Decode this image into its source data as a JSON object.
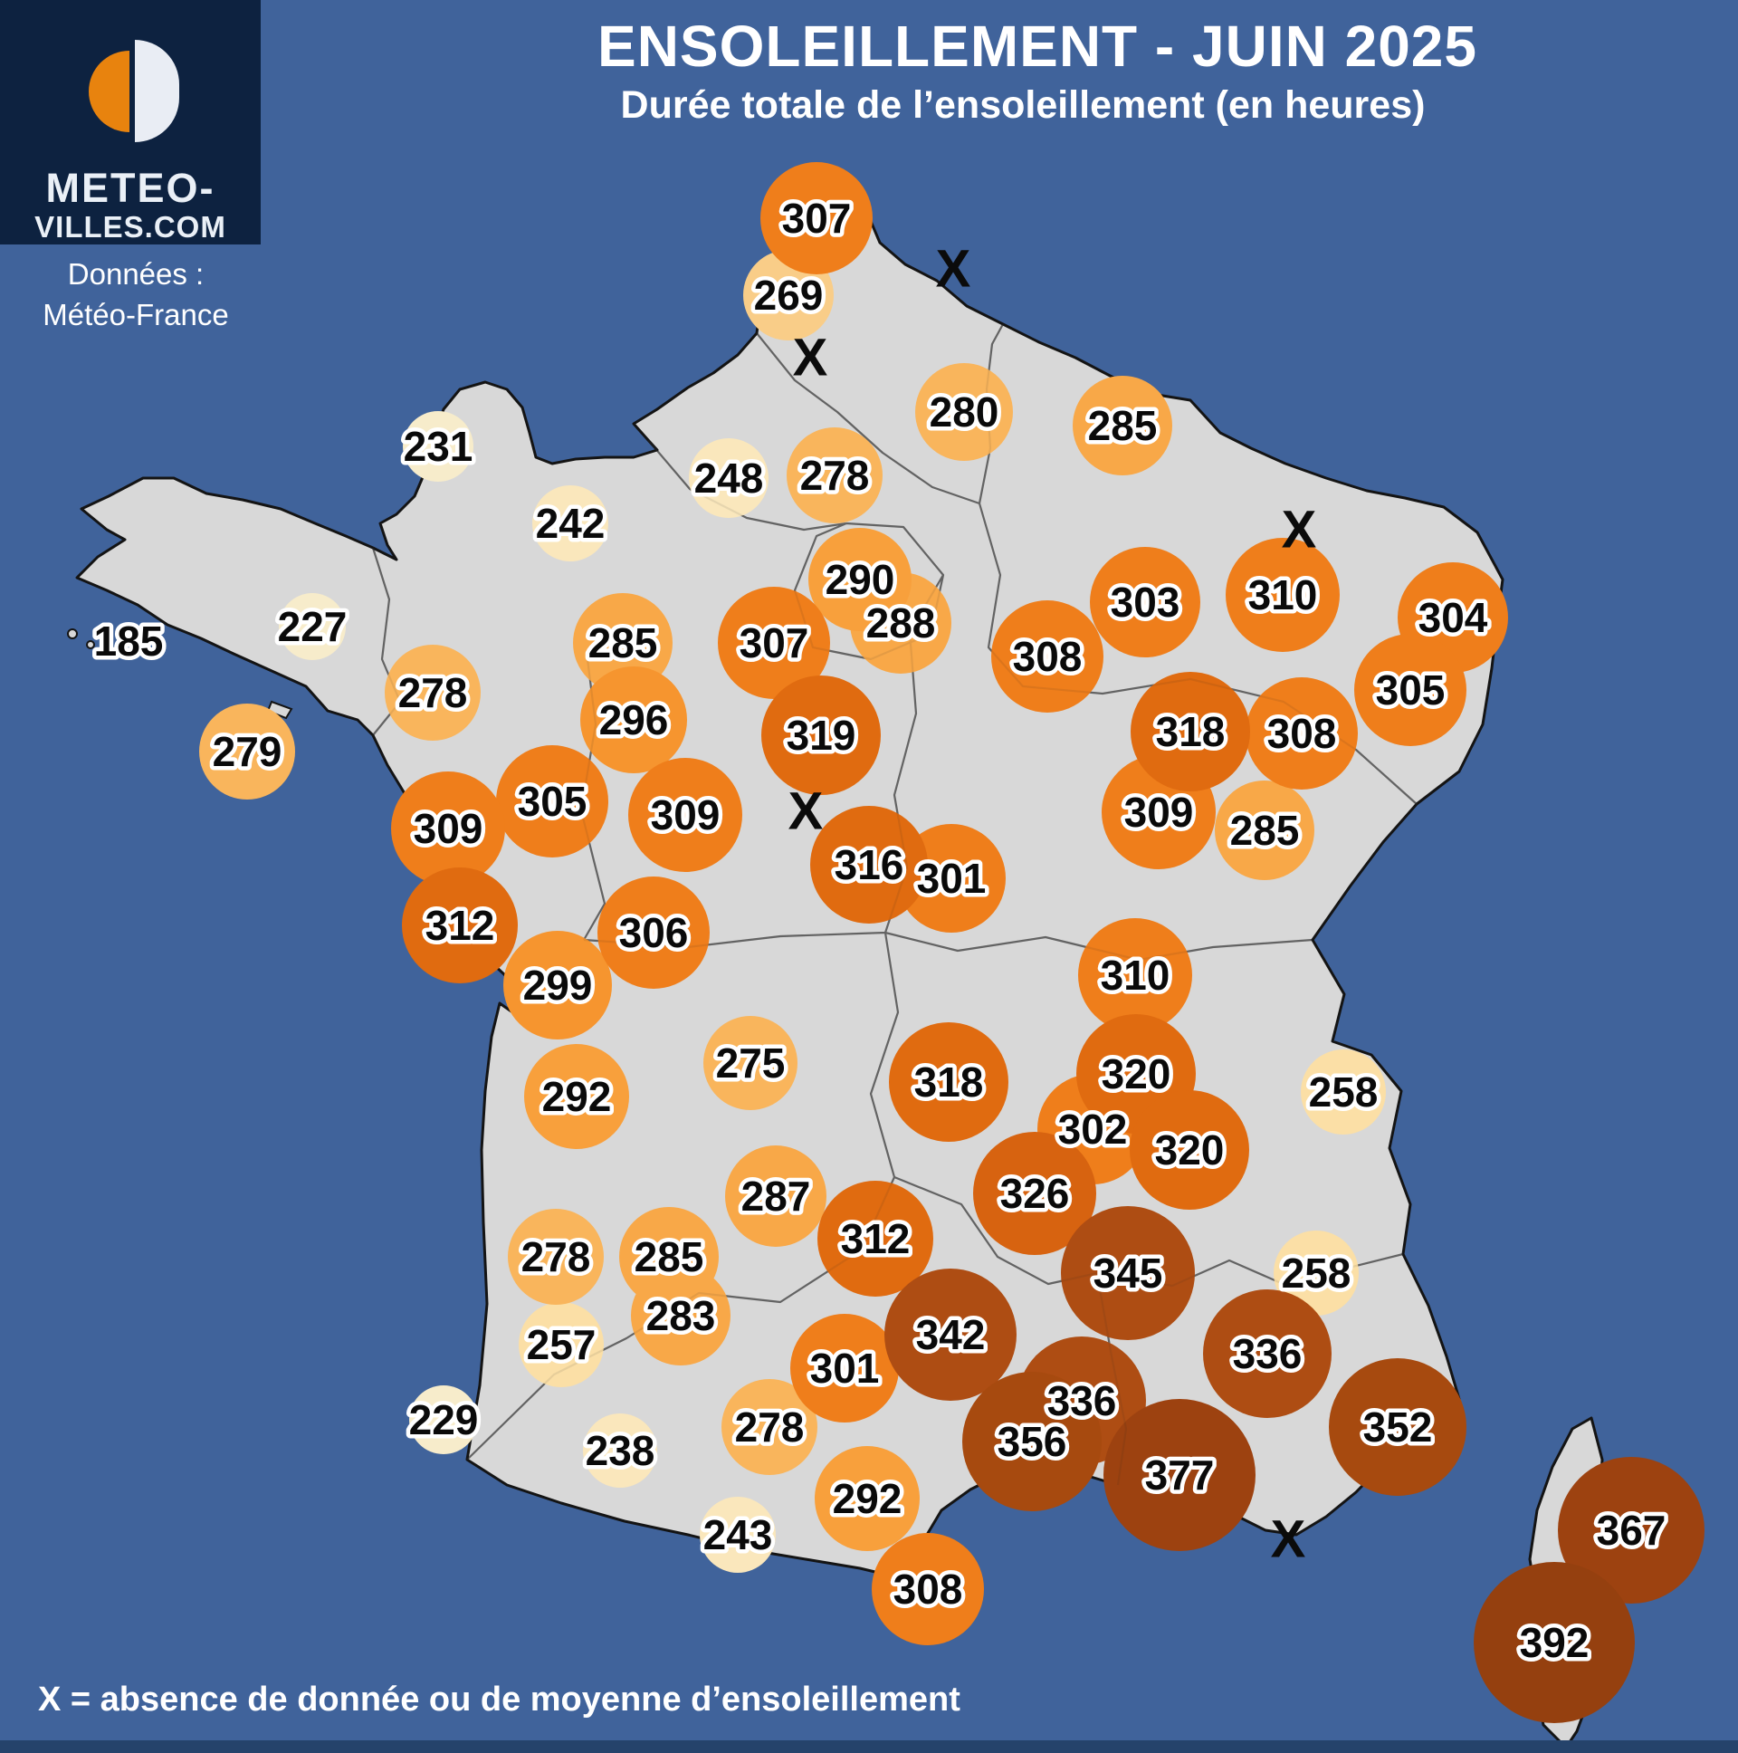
{
  "header": {
    "title": "ENSOLEILLEMENT - JUIN 2025",
    "subtitle": "Durée totale de l’ensoleillement (en heures)"
  },
  "logo": {
    "line1": "METEO-",
    "line2": "VILLES.COM",
    "navy": "#0D2240",
    "orange": "#E8830E"
  },
  "credit": {
    "line1": "Données :",
    "line2": "Météo-France"
  },
  "footer": {
    "legend": "X = absence de donnée ou de moyenne d’ensoleillement"
  },
  "map": {
    "sea_color": "#40639B",
    "land_color": "#D8D8D8",
    "coast_color": "#141414",
    "border_color": "#222222",
    "bottom_strip_color": "#25436B",
    "label_color": "#0A0A0A",
    "label_outline": "#FFFFFF"
  },
  "color_scale": [
    {
      "max": 200,
      "color": "#FDF8EA"
    },
    {
      "max": 235,
      "color": "#F7ECCB"
    },
    {
      "max": 250,
      "color": "#FAE7BC"
    },
    {
      "max": 262,
      "color": "#FBDFA6"
    },
    {
      "max": 272,
      "color": "#F9CD88"
    },
    {
      "max": 282,
      "color": "#F9B55C"
    },
    {
      "max": 289,
      "color": "#F8A848"
    },
    {
      "max": 294,
      "color": "#F8A03C"
    },
    {
      "max": 300,
      "color": "#F6952F"
    },
    {
      "max": 311,
      "color": "#EF7E1B"
    },
    {
      "max": 322,
      "color": "#E06B10"
    },
    {
      "max": 330,
      "color": "#D76310"
    },
    {
      "max": 348,
      "color": "#AE4D13"
    },
    {
      "max": 360,
      "color": "#A74A0F"
    },
    {
      "max": 385,
      "color": "#9D4210"
    },
    {
      "max": 999,
      "color": "#95400F"
    }
  ],
  "data_points_format": [
    "value_hours",
    "x_px",
    "y_px"
  ],
  "label_only_points": [
    [
      185,
      142,
      708
    ]
  ],
  "data_points": [
    [
      227,
      345,
      692
    ],
    [
      229,
      490,
      1568
    ],
    [
      231,
      484,
      493
    ],
    [
      238,
      685,
      1602
    ],
    [
      242,
      630,
      578
    ],
    [
      243,
      815,
      1695
    ],
    [
      248,
      805,
      528
    ],
    [
      257,
      620,
      1485
    ],
    [
      258,
      1484,
      1206
    ],
    [
      258,
      1454,
      1406
    ],
    [
      269,
      871,
      326
    ],
    [
      275,
      829,
      1174
    ],
    [
      278,
      922,
      525
    ],
    [
      278,
      478,
      765
    ],
    [
      278,
      614,
      1388
    ],
    [
      278,
      850,
      1576
    ],
    [
      279,
      273,
      830
    ],
    [
      280,
      1065,
      455
    ],
    [
      283,
      752,
      1453
    ],
    [
      285,
      1240,
      470
    ],
    [
      285,
      688,
      710
    ],
    [
      285,
      1397,
      917
    ],
    [
      285,
      739,
      1388
    ],
    [
      287,
      857,
      1321
    ],
    [
      288,
      995,
      688
    ],
    [
      290,
      950,
      640
    ],
    [
      292,
      637,
      1211
    ],
    [
      292,
      958,
      1655
    ],
    [
      296,
      700,
      795
    ],
    [
      299,
      616,
      1088
    ],
    [
      301,
      1051,
      970
    ],
    [
      301,
      933,
      1511
    ],
    [
      302,
      1207,
      1247
    ],
    [
      303,
      1265,
      665
    ],
    [
      304,
      1605,
      682
    ],
    [
      305,
      1558,
      762
    ],
    [
      305,
      610,
      885
    ],
    [
      306,
      722,
      1030
    ],
    [
      307,
      902,
      241
    ],
    [
      307,
      855,
      710
    ],
    [
      308,
      1157,
      725
    ],
    [
      308,
      1438,
      810
    ],
    [
      308,
      1025,
      1755
    ],
    [
      309,
      757,
      900
    ],
    [
      309,
      1280,
      897
    ],
    [
      309,
      495,
      915
    ],
    [
      310,
      1417,
      657
    ],
    [
      310,
      1254,
      1077
    ],
    [
      312,
      508,
      1022
    ],
    [
      312,
      967,
      1368
    ],
    [
      316,
      960,
      955
    ],
    [
      318,
      1315,
      808
    ],
    [
      318,
      1048,
      1195
    ],
    [
      319,
      907,
      812
    ],
    [
      320,
      1255,
      1186
    ],
    [
      320,
      1314,
      1270
    ],
    [
      326,
      1143,
      1318
    ],
    [
      336,
      1400,
      1495
    ],
    [
      336,
      1195,
      1547
    ],
    [
      342,
      1050,
      1474
    ],
    [
      345,
      1246,
      1406
    ],
    [
      352,
      1544,
      1576
    ],
    [
      356,
      1140,
      1592
    ],
    [
      367,
      1802,
      1690
    ],
    [
      377,
      1303,
      1629
    ],
    [
      392,
      1717,
      1814
    ]
  ],
  "no_data_markers_format": [
    "x_px",
    "y_px"
  ],
  "no_data_markers": [
    [
      1053,
      297
    ],
    [
      895,
      395
    ],
    [
      1435,
      585
    ],
    [
      890,
      896
    ],
    [
      1423,
      1700
    ]
  ]
}
